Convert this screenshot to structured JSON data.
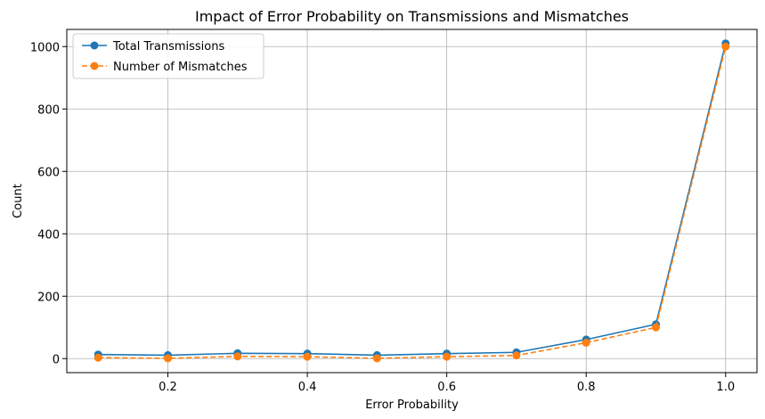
{
  "chart_data": {
    "type": "line",
    "title": "Impact of Error Probability on Transmissions and Mismatches",
    "xlabel": "Error Probability",
    "ylabel": "Count",
    "x": [
      0.1,
      0.2,
      0.3,
      0.4,
      0.5,
      0.6,
      0.7,
      0.8,
      0.9,
      1.0
    ],
    "xlim": [
      0.055,
      1.045
    ],
    "ylim": [
      -45,
      1055
    ],
    "xticks": [
      0.2,
      0.4,
      0.6,
      0.8,
      1.0
    ],
    "xtick_labels": [
      "0.2",
      "0.4",
      "0.6",
      "0.8",
      "1.0"
    ],
    "yticks": [
      0,
      200,
      400,
      600,
      800,
      1000
    ],
    "ytick_labels": [
      "0",
      "200",
      "400",
      "600",
      "800",
      "1000"
    ],
    "grid": true,
    "legend_position": "top-left",
    "series": [
      {
        "name": "Total Transmissions",
        "values": [
          13,
          11,
          17,
          16,
          11,
          16,
          20,
          61,
          110,
          1010
        ],
        "color": "#1f77b4",
        "line_style": "solid",
        "marker": "circle"
      },
      {
        "name": "Number of Mismatches",
        "values": [
          3,
          1,
          7,
          6,
          1,
          6,
          10,
          51,
          100,
          1000
        ],
        "color": "#ff7f0e",
        "line_style": "dashed",
        "marker": "circle"
      }
    ]
  }
}
